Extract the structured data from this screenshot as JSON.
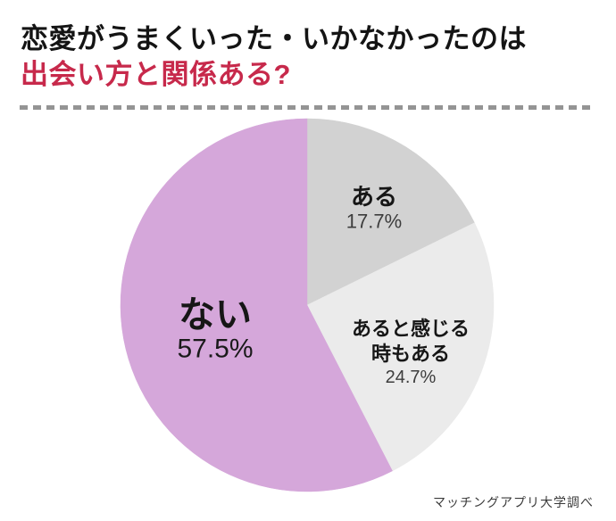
{
  "header": {
    "title_line1": "恋愛がうまくいった・いかなかったのは",
    "title_line2": "出会い方と関係ある?",
    "accent_color": "#c7294b"
  },
  "chart_data": {
    "type": "pie",
    "title": "恋愛がうまくいった・いかなかったのは出会い方と関係ある?",
    "start_angle_deg": 0,
    "direction": "clockwise",
    "legend_position": "inside",
    "slices": [
      {
        "label": "ある",
        "value_pct": 17.7,
        "display_pct": "17.7%",
        "color": "#d2d2d2"
      },
      {
        "label": "あると感じる\n時もある",
        "value_pct": 24.7,
        "display_pct": "24.7%",
        "color": "#ebebeb"
      },
      {
        "label": "ない",
        "value_pct": 57.5,
        "display_pct": "57.5%",
        "color": "#d5a7da"
      }
    ]
  },
  "footer": {
    "source": "マッチングアプリ大学調べ"
  }
}
